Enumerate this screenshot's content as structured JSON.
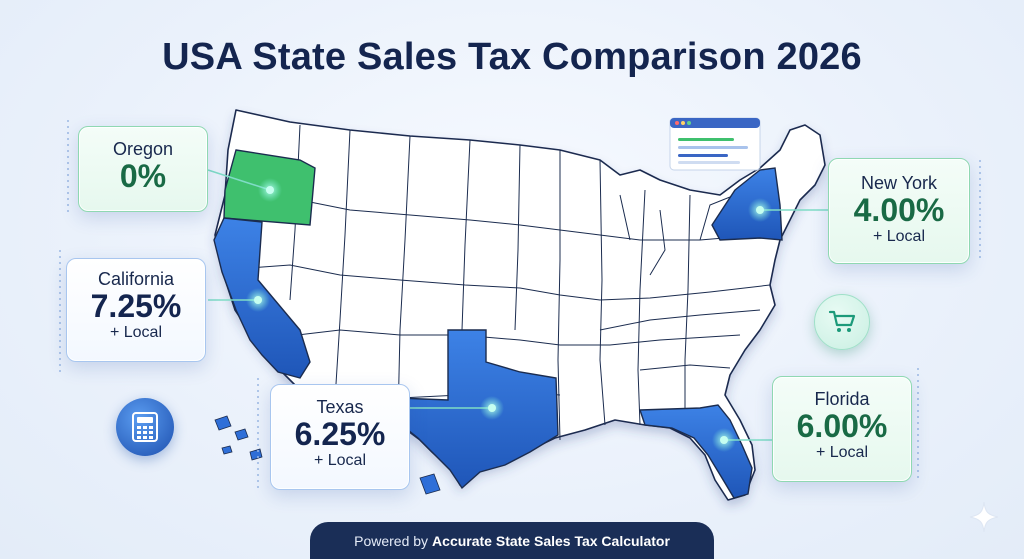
{
  "title": "USA State Sales Tax Comparison 2026",
  "states": {
    "oregon": {
      "name": "Oregon",
      "rate": "0%",
      "color": "#3fc06e"
    },
    "california": {
      "name": "California",
      "rate": "7.25%",
      "local": "+ Local",
      "color": "#2f6fd8"
    },
    "texas": {
      "name": "Texas",
      "rate": "6.25%",
      "local": "+ Local",
      "color": "#2f6fd8"
    },
    "new_york": {
      "name": "New York",
      "rate": "4.00%",
      "local": "+ Local",
      "color": "#2f6fd8"
    },
    "florida": {
      "name": "Florida",
      "rate": "6.00%",
      "local": "+ Local",
      "color": "#2f6fd8"
    }
  },
  "icons": {
    "calculator": "calculator-icon",
    "cart": "shopping-cart-icon",
    "browser": "browser-window-icon",
    "sparkle": "sparkle-icon"
  },
  "footer": {
    "prefix": "Powered by",
    "brand": "Accurate State Sales Tax Calculator"
  },
  "colors": {
    "title": "#14254f",
    "highlight_blue": "#2f6fd8",
    "highlight_green": "#3fc06e",
    "footer_bg": "#1a2e57"
  }
}
